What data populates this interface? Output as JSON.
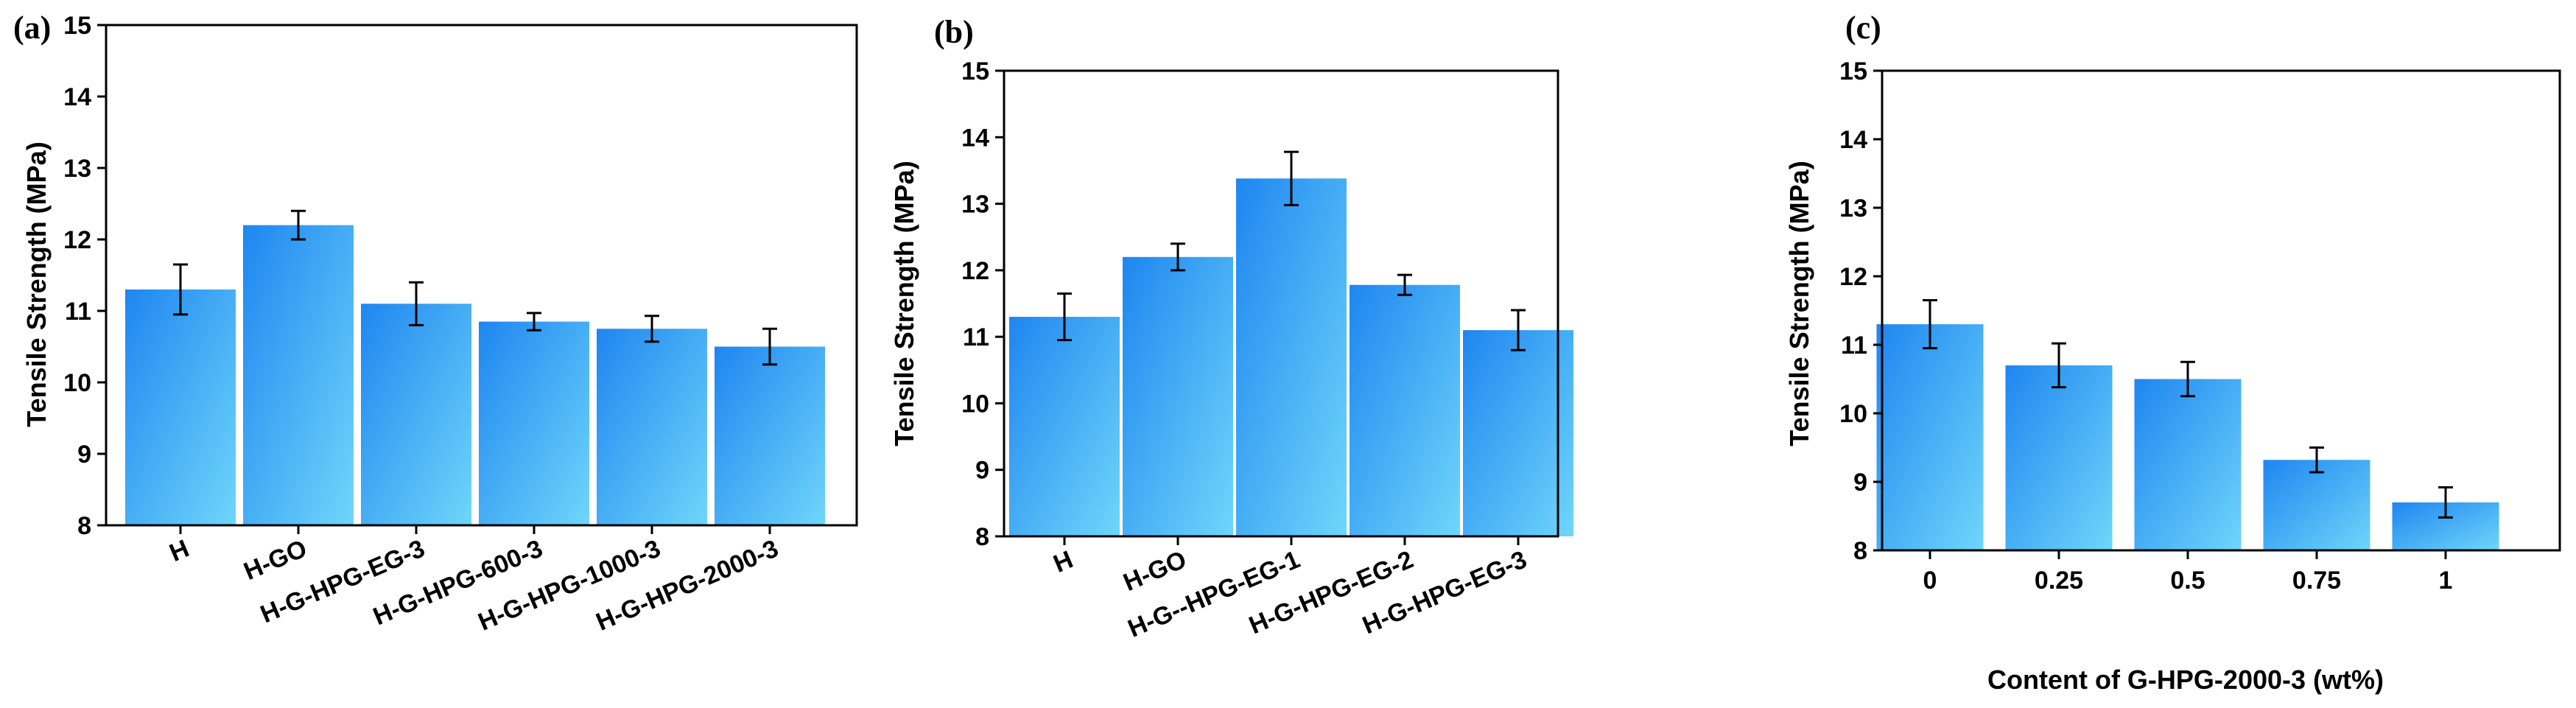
{
  "chart_data": [
    {
      "type": "bar",
      "panel_label": "(a)",
      "categories": [
        "H",
        "H-GO",
        "H-G-HPG-EG-3",
        "H-G-HPG-600-3",
        "H-G-HPG-1000-3",
        "H-G-HPG-2000-3"
      ],
      "values": [
        11.3,
        12.2,
        11.1,
        10.85,
        10.75,
        10.5
      ],
      "errors": [
        0.35,
        0.2,
        0.3,
        0.12,
        0.18,
        0.25
      ],
      "title": "",
      "xlabel": "",
      "ylabel": "Tensile Strength (MPa)",
      "ylim": [
        8,
        15
      ],
      "yticks": [
        "8",
        "9",
        "10",
        "11",
        "12",
        "13",
        "14",
        "15"
      ],
      "grid": false,
      "category_labels_rotated": true
    },
    {
      "type": "bar",
      "panel_label": "(b)",
      "categories": [
        "H",
        "H-GO",
        "H-G--HPG-EG-1",
        "H-G-HPG-EG-2",
        "H-G-HPG-EG-3"
      ],
      "values": [
        11.3,
        12.2,
        13.38,
        11.78,
        11.1
      ],
      "errors": [
        0.35,
        0.2,
        0.4,
        0.15,
        0.3
      ],
      "title": "",
      "xlabel": "",
      "ylabel": "Tensile Strength (MPa)",
      "ylim": [
        8,
        15
      ],
      "yticks": [
        "8",
        "9",
        "10",
        "11",
        "12",
        "13",
        "14",
        "15"
      ],
      "grid": false,
      "category_labels_rotated": true
    },
    {
      "type": "bar",
      "panel_label": "(c)",
      "categories": [
        "0",
        "0.25",
        "0.5",
        "0.75",
        "1"
      ],
      "values": [
        11.3,
        10.7,
        10.5,
        9.32,
        8.7
      ],
      "errors": [
        0.35,
        0.32,
        0.25,
        0.18,
        0.22
      ],
      "title": "",
      "xlabel": "Content of G-HPG-2000-3 (wt%)",
      "ylabel": "Tensile Strength (MPa)",
      "ylim": [
        8,
        15
      ],
      "yticks": [
        "8",
        "9",
        "10",
        "11",
        "12",
        "13",
        "14",
        "15"
      ],
      "grid": false,
      "category_labels_rotated": false
    }
  ],
  "colors": {
    "bar_dark": "#1e86f0",
    "bar_light": "#6fd6fa",
    "axis": "#000000",
    "error_bar": "#000000"
  }
}
